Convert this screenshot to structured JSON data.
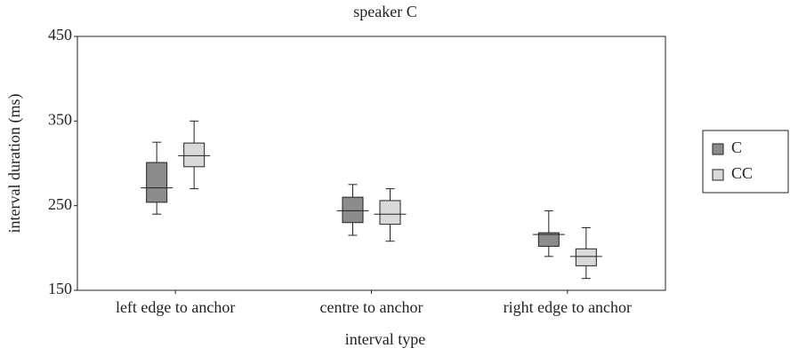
{
  "chart_data": {
    "type": "box",
    "title": "speaker C",
    "x_label": "interval type",
    "y_label": "interval duration (ms)",
    "categories": [
      "left edge to anchor",
      "centre to anchor",
      "right edge to anchor"
    ],
    "ylim": [
      150,
      450
    ],
    "yticks": [
      150,
      250,
      350,
      450
    ],
    "series": [
      {
        "name": "C",
        "color": "#8c8c8c",
        "values": [
          {
            "min": 240,
            "q1": 254,
            "median": 271,
            "q3": 301,
            "max": 325
          },
          {
            "min": 215,
            "q1": 230,
            "median": 244,
            "q3": 260,
            "max": 275
          },
          {
            "min": 190,
            "q1": 202,
            "median": 216,
            "q3": 218,
            "max": 244
          }
        ]
      },
      {
        "name": "CC",
        "color": "#d9d9d9",
        "values": [
          {
            "min": 270,
            "q1": 296,
            "median": 309,
            "q3": 324,
            "max": 350
          },
          {
            "min": 208,
            "q1": 228,
            "median": 240,
            "q3": 256,
            "max": 270
          },
          {
            "min": 164,
            "q1": 179,
            "median": 190,
            "q3": 199,
            "max": 224
          }
        ]
      }
    ]
  }
}
